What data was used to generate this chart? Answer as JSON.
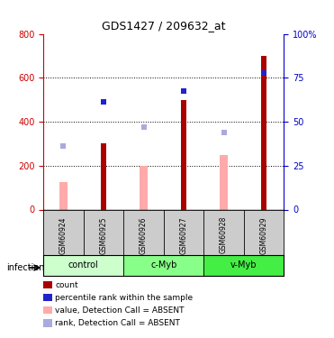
{
  "title": "GDS1427 / 209632_at",
  "samples": [
    "GSM60924",
    "GSM60925",
    "GSM60926",
    "GSM60927",
    "GSM60928",
    "GSM60929"
  ],
  "groups": [
    {
      "label": "control",
      "indices": [
        0,
        1
      ],
      "color": "#ccffcc"
    },
    {
      "label": "c-Myb",
      "indices": [
        2,
        3
      ],
      "color": "#88ff88"
    },
    {
      "label": "v-Myb",
      "indices": [
        4,
        5
      ],
      "color": "#44ee44"
    }
  ],
  "infection_label": "infection",
  "count_values": [
    null,
    300,
    null,
    500,
    null,
    700
  ],
  "pink_bar_values": [
    125,
    null,
    200,
    null,
    250,
    null
  ],
  "blue_square_values": [
    290,
    490,
    375,
    540,
    350,
    620
  ],
  "blue_square_dark": [
    false,
    true,
    false,
    true,
    false,
    true
  ],
  "ylim_left": [
    0,
    800
  ],
  "ylim_right": [
    0,
    100
  ],
  "yticks_left": [
    0,
    200,
    400,
    600,
    800
  ],
  "yticks_right": [
    0,
    25,
    50,
    75,
    100
  ],
  "ytick_labels_right": [
    "0",
    "25",
    "50",
    "75",
    "100%"
  ],
  "left_axis_color": "#cc0000",
  "right_axis_color": "#0000cc",
  "bar_color_dark_red": "#aa0000",
  "bar_color_pink": "#ffaaaa",
  "square_color_dark_blue": "#2222cc",
  "square_color_light_blue": "#aaaadd",
  "grid_color": "#000000",
  "sample_area_bg": "#cccccc",
  "legend_items": [
    {
      "color": "#aa0000",
      "label": "count"
    },
    {
      "color": "#2222cc",
      "label": "percentile rank within the sample"
    },
    {
      "color": "#ffaaaa",
      "label": "value, Detection Call = ABSENT"
    },
    {
      "color": "#aaaadd",
      "label": "rank, Detection Call = ABSENT"
    }
  ]
}
